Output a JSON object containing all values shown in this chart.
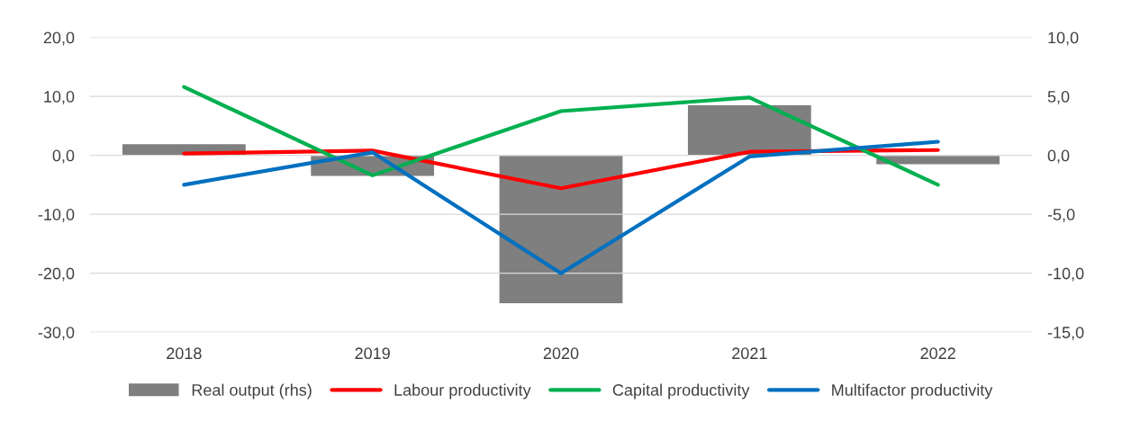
{
  "chart_data": {
    "type": "bar",
    "categories": [
      "2018",
      "2019",
      "2020",
      "2021",
      "2022"
    ],
    "series": [
      {
        "name": "Real output (rhs)",
        "axis": "y2",
        "color": "#7f7f7f",
        "values": [
          1.0,
          -1.8,
          -12.6,
          4.3,
          -0.8
        ]
      },
      {
        "name": "Labour productivity",
        "type": "line",
        "color": "#ff0000",
        "values": [
          0.3,
          0.8,
          -5.6,
          0.6,
          0.9
        ]
      },
      {
        "name": "Capital productivity",
        "type": "line",
        "color": "#00b050",
        "values": [
          11.6,
          -3.4,
          7.5,
          9.8,
          -5.0
        ]
      },
      {
        "name": "Multifactor productivity",
        "type": "line",
        "color": "#0070c0",
        "values": [
          -5.0,
          0.5,
          -20.0,
          -0.2,
          2.3
        ]
      }
    ],
    "ylim": [
      -30,
      20
    ],
    "yticks": [
      {
        "value": -30,
        "label": "-30,0"
      },
      {
        "value": -20,
        "label": "-20,0"
      },
      {
        "value": -10,
        "label": "-10,0"
      },
      {
        "value": 0,
        "label": "0,0"
      },
      {
        "value": 10,
        "label": "10,0"
      },
      {
        "value": 20,
        "label": "20,0"
      }
    ],
    "y2lim": [
      -15,
      10
    ],
    "y2ticks": [
      {
        "value": -15,
        "label": "-15,0"
      },
      {
        "value": -10,
        "label": "-10,0"
      },
      {
        "value": -5,
        "label": "-5,0"
      },
      {
        "value": 0,
        "label": "0,0"
      },
      {
        "value": 5,
        "label": "5,0"
      },
      {
        "value": 10,
        "label": "10,0"
      }
    ],
    "grid": "y",
    "legend": "bottom",
    "marker": "none",
    "line_style": "solid"
  }
}
